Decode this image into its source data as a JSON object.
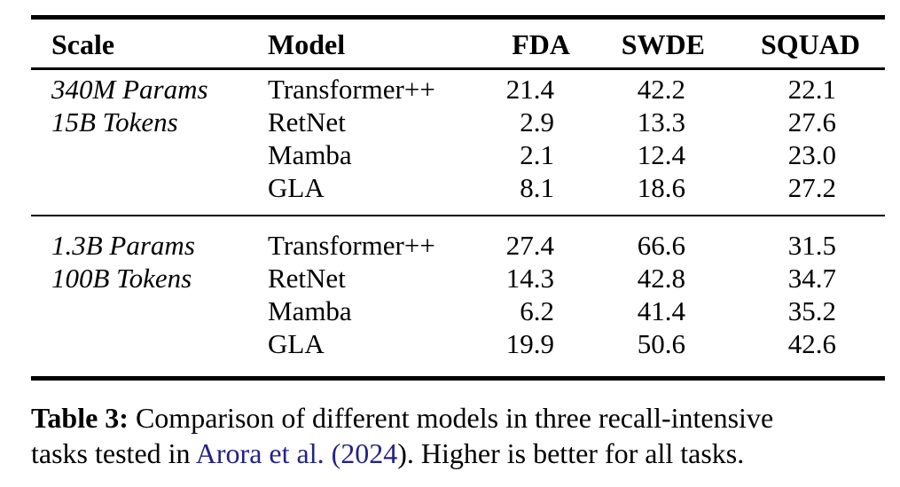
{
  "table": {
    "columns": [
      "Scale",
      "Model",
      "FDA",
      "SWDE",
      "SQUAD"
    ],
    "groups": [
      {
        "scale_lines": [
          "340M Params",
          "15B Tokens"
        ],
        "rows": [
          {
            "model": "Transformer++",
            "fda": "21.4",
            "swde": "42.2",
            "squad": "22.1"
          },
          {
            "model": "RetNet",
            "fda": "2.9",
            "swde": "13.3",
            "squad": "27.6"
          },
          {
            "model": "Mamba",
            "fda": "2.1",
            "swde": "12.4",
            "squad": "23.0"
          },
          {
            "model": "GLA",
            "fda": "8.1",
            "swde": "18.6",
            "squad": "27.2"
          }
        ]
      },
      {
        "scale_lines": [
          "1.3B Params",
          "100B Tokens"
        ],
        "rows": [
          {
            "model": "Transformer++",
            "fda": "27.4",
            "swde": "66.6",
            "squad": "31.5"
          },
          {
            "model": "RetNet",
            "fda": "14.3",
            "swde": "42.8",
            "squad": "34.7"
          },
          {
            "model": "Mamba",
            "fda": "6.2",
            "swde": "41.4",
            "squad": "35.2"
          },
          {
            "model": "GLA",
            "fda": "19.9",
            "swde": "50.6",
            "squad": "42.6"
          }
        ]
      }
    ]
  },
  "caption": {
    "label": "Table 3:",
    "line1_rest": " Comparison of different models in three recall-intensive",
    "line2_before": "tasks tested in ",
    "citation": "Arora et al. (2024",
    "line2_after": "). Higher is better for all tasks."
  },
  "colors": {
    "text": "#000000",
    "citation_link": "#232387",
    "rule": "#000000",
    "background": "#ffffff"
  }
}
